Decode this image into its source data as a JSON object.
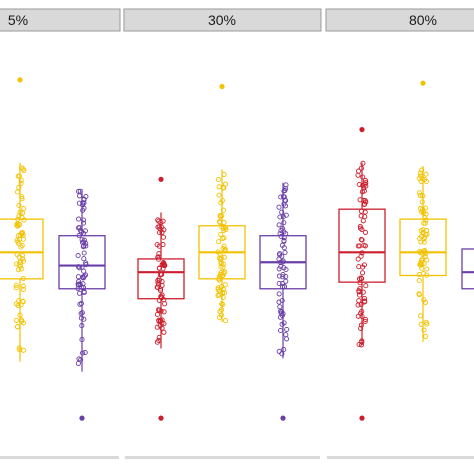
{
  "chart_data": {
    "type": "box",
    "panels": [
      {
        "label": "5%",
        "boxes": [
          {
            "color": "#f2c200",
            "whisker_low": 6,
            "q1": 31,
            "median": 39,
            "q3": 49,
            "whisker_high": 66,
            "outliers": [
              91
            ]
          },
          {
            "color": "#6a40a8",
            "whisker_low": 3,
            "q1": 28,
            "median": 35,
            "q3": 44,
            "whisker_high": 58,
            "outliers": [
              -11
            ]
          }
        ]
      },
      {
        "label": "30%",
        "boxes": [
          {
            "color": "#cc1f2e",
            "whisker_low": 10,
            "q1": 25,
            "median": 33,
            "q3": 37,
            "whisker_high": 51,
            "outliers": [
              61,
              -11
            ]
          },
          {
            "color": "#f2c200",
            "whisker_low": 18,
            "q1": 31,
            "median": 39,
            "q3": 47,
            "whisker_high": 64,
            "outliers": [
              89
            ]
          },
          {
            "color": "#6a40a8",
            "whisker_low": 7,
            "q1": 28,
            "median": 36,
            "q3": 44,
            "whisker_high": 60,
            "outliers": [
              -11
            ]
          }
        ]
      },
      {
        "label": "80%",
        "boxes": [
          {
            "color": "#cc1f2e",
            "whisker_low": 11,
            "q1": 30,
            "median": 39,
            "q3": 52,
            "whisker_high": 66,
            "outliers": [
              76,
              -11
            ]
          },
          {
            "color": "#f2c200",
            "whisker_low": 12,
            "q1": 32,
            "median": 39,
            "q3": 49,
            "whisker_high": 65,
            "outliers": [
              90
            ]
          },
          {
            "color": "#6a40a8",
            "whisker_low": 19,
            "q1": 28,
            "median": 33,
            "q3": 40,
            "whisker_high": 48,
            "outliers": []
          }
        ]
      }
    ],
    "ylim": [
      -17,
      100
    ],
    "grid": false,
    "legend": "none"
  }
}
